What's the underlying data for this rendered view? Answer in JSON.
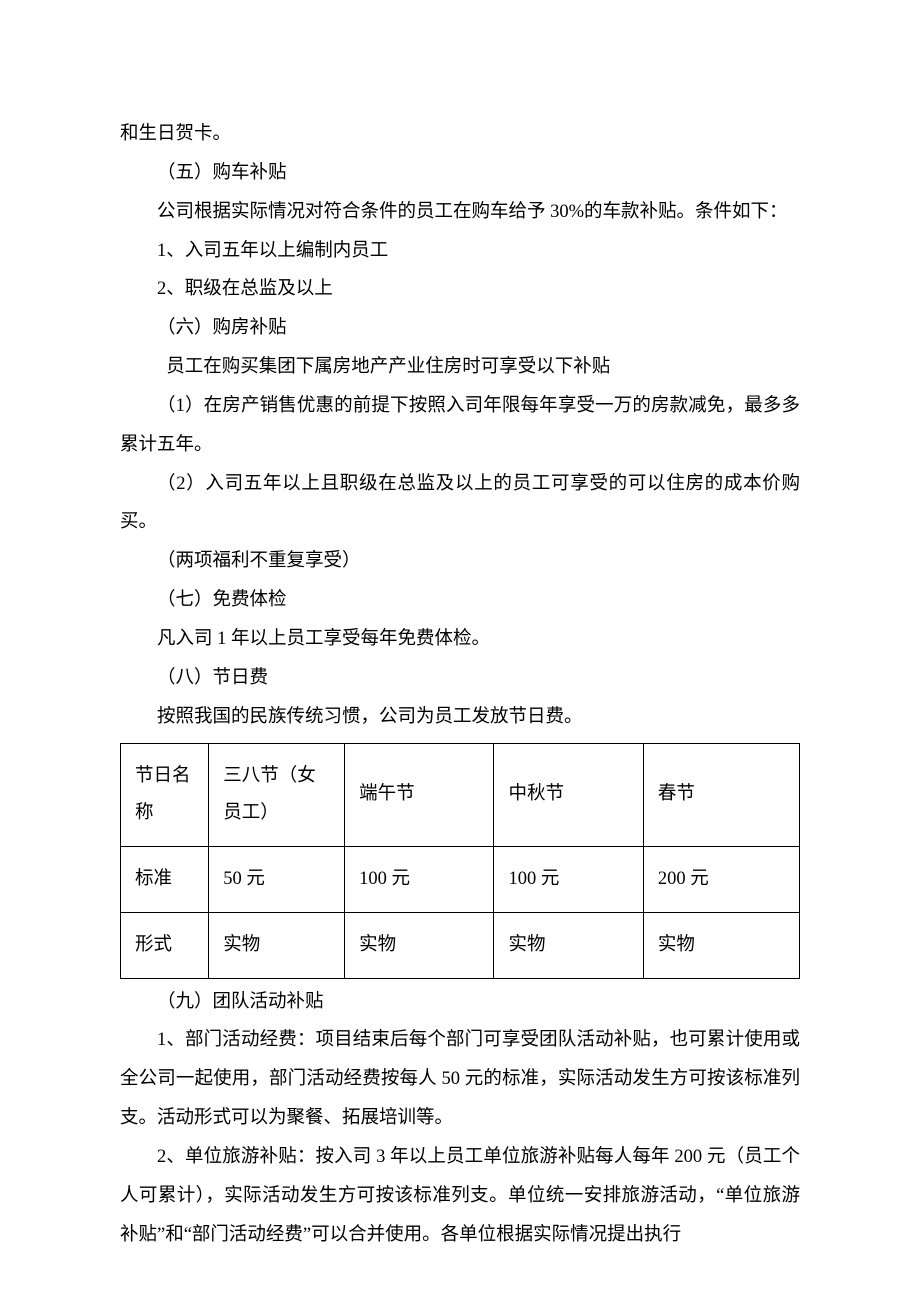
{
  "p1": "和生日贺卡。",
  "p2": "（五）购车补贴",
  "p3": "公司根据实际情况对符合条件的员工在购车给予 30%的车款补贴。条件如下：",
  "p4": "1、入司五年以上编制内员工",
  "p5": "2、职级在总监及以上",
  "p6": "（六）购房补贴",
  "p7": "员工在购买集团下属房地产产业住房时可享受以下补贴",
  "p8": "（1）在房产销售优惠的前提下按照入司年限每年享受一万的房款减免，最多多累计五年。",
  "p9": "（2）入司五年以上且职级在总监及以上的员工可享受的可以住房的成本价购买。",
  "p10": "（两项福利不重复享受）",
  "p11": "（七）免费体检",
  "p12": "凡入司 1 年以上员工享受每年免费体检。",
  "p13": "（八）节日费",
  "p14": "按照我国的民族传统习惯，公司为员工发放节日费。",
  "table": {
    "row0": {
      "c0": "节日名称",
      "c1": "三八节（女员工）",
      "c2": "端午节",
      "c3": "中秋节",
      "c4": "春节"
    },
    "row1": {
      "c0": "标准",
      "c1": "50 元",
      "c2": "100 元",
      "c3": "100 元",
      "c4": "200 元"
    },
    "row2": {
      "c0": "形式",
      "c1": "实物",
      "c2": "实物",
      "c3": "实物",
      "c4": "实物"
    }
  },
  "p15": "（九）团队活动补贴",
  "p16": "1、部门活动经费：项目结束后每个部门可享受团队活动补贴，也可累计使用或全公司一起使用，部门活动经费按每人 50 元的标准，实际活动发生方可按该标准列支。活动形式可以为聚餐、拓展培训等。",
  "p17": "2、单位旅游补贴：按入司 3 年以上员工单位旅游补贴每人每年 200 元（员工个人可累计），实际活动发生方可按该标准列支。单位统一安排旅游活动，“单位旅游补贴”和“部门活动经费”可以合并使用。各单位根据实际情况提出执行"
}
